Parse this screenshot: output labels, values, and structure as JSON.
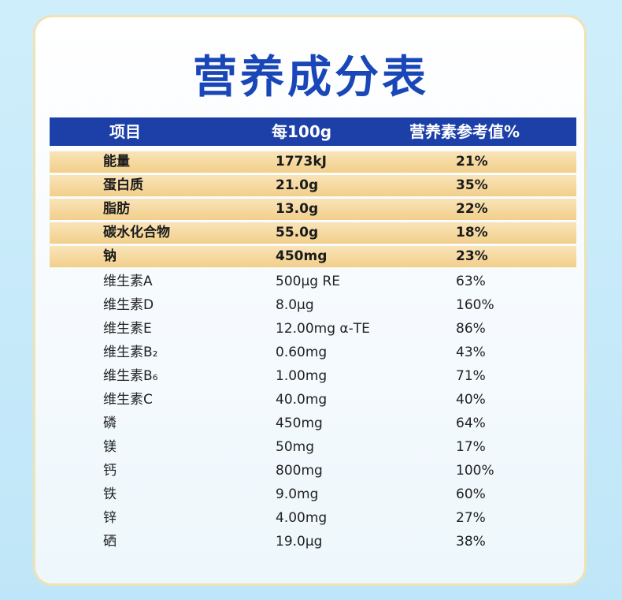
{
  "title": "营养成分表",
  "header": {
    "col1": "项目",
    "col2": "每100g",
    "col3": "营养素参考值%"
  },
  "rows": [
    {
      "item": "能量",
      "amount": "1773kJ",
      "nrv": "21%",
      "highlight": true
    },
    {
      "item": "蛋白质",
      "amount": "21.0g",
      "nrv": "35%",
      "highlight": true
    },
    {
      "item": "脂肪",
      "amount": "13.0g",
      "nrv": "22%",
      "highlight": true
    },
    {
      "item": "碳水化合物",
      "amount": "55.0g",
      "nrv": "18%",
      "highlight": true
    },
    {
      "item": "钠",
      "amount": "450mg",
      "nrv": "23%",
      "highlight": true
    },
    {
      "item": "维生素A",
      "amount": "500µg RE",
      "nrv": "63%",
      "highlight": false
    },
    {
      "item": "维生素D",
      "amount": "8.0µg",
      "nrv": "160%",
      "highlight": false
    },
    {
      "item": "维生素E",
      "amount": "12.00mg α-TE",
      "nrv": "86%",
      "highlight": false
    },
    {
      "item": "维生素B₂",
      "amount": "0.60mg",
      "nrv": "43%",
      "highlight": false
    },
    {
      "item": "维生素B₆",
      "amount": "1.00mg",
      "nrv": "71%",
      "highlight": false
    },
    {
      "item": "维生素C",
      "amount": "40.0mg",
      "nrv": "40%",
      "highlight": false
    },
    {
      "item": "磷",
      "amount": "450mg",
      "nrv": "64%",
      "highlight": false
    },
    {
      "item": "镁",
      "amount": "50mg",
      "nrv": "17%",
      "highlight": false
    },
    {
      "item": "钙",
      "amount": "800mg",
      "nrv": "100%",
      "highlight": false
    },
    {
      "item": "铁",
      "amount": "9.0mg",
      "nrv": "60%",
      "highlight": false
    },
    {
      "item": "锌",
      "amount": "4.00mg",
      "nrv": "27%",
      "highlight": false
    },
    {
      "item": "硒",
      "amount": "19.0µg",
      "nrv": "38%",
      "highlight": false
    }
  ],
  "colors": {
    "title": "#1a47b8",
    "header_bg": "#1c3fa8",
    "highlight_row": "#f2cf8a",
    "card_border": "#efe2b4"
  }
}
